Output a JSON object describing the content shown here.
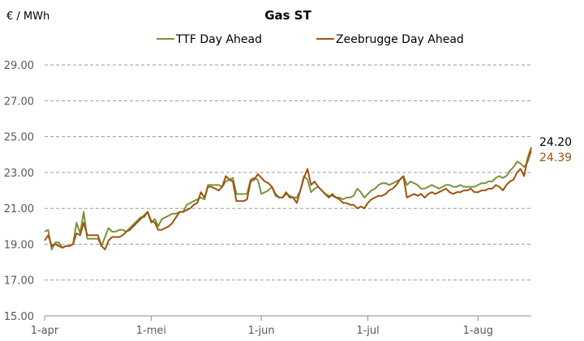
{
  "chart_data": {
    "type": "line",
    "title": "Gas ST",
    "ylabel": "€ / MWh",
    "xlabel": "",
    "ylim": [
      15,
      30
    ],
    "yticks": [
      "15.00",
      "17.00",
      "19.00",
      "21.00",
      "23.00",
      "25.00",
      "27.00",
      "29.00"
    ],
    "xticks": [
      {
        "label": "1-apr",
        "day": 0
      },
      {
        "label": "1-mei",
        "day": 30
      },
      {
        "label": "1-jun",
        "day": 61
      },
      {
        "label": "1-jul",
        "day": 91
      },
      {
        "label": "1-aug",
        "day": 122
      }
    ],
    "xlim": [
      0,
      137
    ],
    "grid": "horizontal-dashed",
    "legend": "top-center",
    "series": [
      {
        "name": "TTF Day Ahead",
        "color": "#77933c",
        "last_value_label": "24.20",
        "points": [
          [
            0,
            19.7
          ],
          [
            1,
            19.8
          ],
          [
            2,
            18.7
          ],
          [
            3,
            19.1
          ],
          [
            4,
            19.1
          ],
          [
            5,
            18.8
          ],
          [
            6,
            18.9
          ],
          [
            7,
            18.9
          ],
          [
            8,
            19.0
          ],
          [
            9,
            20.2
          ],
          [
            10,
            19.6
          ],
          [
            11,
            20.8
          ],
          [
            12,
            19.3
          ],
          [
            13,
            19.3
          ],
          [
            14,
            19.3
          ],
          [
            15,
            19.3
          ],
          [
            16,
            18.9
          ],
          [
            17,
            19.4
          ],
          [
            18,
            19.9
          ],
          [
            19,
            19.7
          ],
          [
            20,
            19.7
          ],
          [
            21,
            19.8
          ],
          [
            22,
            19.8
          ],
          [
            23,
            19.7
          ],
          [
            24,
            19.9
          ],
          [
            25,
            20.1
          ],
          [
            26,
            20.3
          ],
          [
            27,
            20.5
          ],
          [
            28,
            20.5
          ],
          [
            29,
            20.8
          ],
          [
            30,
            20.2
          ],
          [
            31,
            20.4
          ],
          [
            32,
            20.0
          ],
          [
            33,
            20.4
          ],
          [
            34,
            20.5
          ],
          [
            35,
            20.6
          ],
          [
            36,
            20.7
          ],
          [
            37,
            20.7
          ],
          [
            38,
            20.8
          ],
          [
            39,
            20.8
          ],
          [
            40,
            21.2
          ],
          [
            41,
            21.3
          ],
          [
            42,
            21.4
          ],
          [
            43,
            21.5
          ],
          [
            44,
            21.6
          ],
          [
            45,
            21.5
          ],
          [
            46,
            22.3
          ],
          [
            47,
            22.3
          ],
          [
            48,
            22.3
          ],
          [
            49,
            22.3
          ],
          [
            50,
            22.2
          ],
          [
            51,
            22.5
          ],
          [
            52,
            22.6
          ],
          [
            53,
            22.7
          ],
          [
            54,
            21.8
          ],
          [
            55,
            21.8
          ],
          [
            56,
            21.8
          ],
          [
            57,
            21.8
          ],
          [
            58,
            22.6
          ],
          [
            59,
            22.7
          ],
          [
            60,
            22.6
          ],
          [
            61,
            21.8
          ],
          [
            62,
            21.9
          ],
          [
            63,
            22.0
          ],
          [
            64,
            22.2
          ],
          [
            65,
            21.7
          ],
          [
            66,
            21.6
          ],
          [
            67,
            21.6
          ],
          [
            68,
            21.8
          ],
          [
            69,
            21.7
          ],
          [
            70,
            21.6
          ],
          [
            71,
            21.6
          ],
          [
            72,
            22.0
          ],
          [
            73,
            22.8
          ],
          [
            74,
            22.6
          ],
          [
            75,
            21.9
          ],
          [
            76,
            22.1
          ],
          [
            77,
            22.2
          ],
          [
            78,
            22.0
          ],
          [
            79,
            21.8
          ],
          [
            80,
            21.7
          ],
          [
            81,
            21.7
          ],
          [
            82,
            21.6
          ],
          [
            83,
            21.6
          ],
          [
            84,
            21.5
          ],
          [
            85,
            21.6
          ],
          [
            86,
            21.6
          ],
          [
            87,
            21.7
          ],
          [
            88,
            22.1
          ],
          [
            89,
            21.9
          ],
          [
            90,
            21.6
          ],
          [
            91,
            21.8
          ],
          [
            92,
            22.0
          ],
          [
            93,
            22.1
          ],
          [
            94,
            22.3
          ],
          [
            95,
            22.4
          ],
          [
            96,
            22.4
          ],
          [
            97,
            22.3
          ],
          [
            98,
            22.4
          ],
          [
            99,
            22.5
          ],
          [
            100,
            22.6
          ],
          [
            101,
            22.8
          ],
          [
            102,
            22.3
          ],
          [
            103,
            22.5
          ],
          [
            104,
            22.4
          ],
          [
            105,
            22.3
          ],
          [
            106,
            22.1
          ],
          [
            107,
            22.1
          ],
          [
            108,
            22.2
          ],
          [
            109,
            22.3
          ],
          [
            110,
            22.2
          ],
          [
            111,
            22.1
          ],
          [
            112,
            22.2
          ],
          [
            113,
            22.3
          ],
          [
            114,
            22.3
          ],
          [
            115,
            22.2
          ],
          [
            116,
            22.2
          ],
          [
            117,
            22.3
          ],
          [
            118,
            22.2
          ],
          [
            119,
            22.2
          ],
          [
            120,
            22.2
          ],
          [
            121,
            22.2
          ],
          [
            122,
            22.3
          ],
          [
            123,
            22.4
          ],
          [
            124,
            22.4
          ],
          [
            125,
            22.5
          ],
          [
            126,
            22.5
          ],
          [
            127,
            22.7
          ],
          [
            128,
            22.8
          ],
          [
            129,
            22.7
          ],
          [
            130,
            22.8
          ],
          [
            131,
            23.1
          ],
          [
            132,
            23.3
          ],
          [
            133,
            23.6
          ],
          [
            134,
            23.5
          ],
          [
            135,
            23.3
          ],
          [
            136,
            23.6
          ],
          [
            137,
            24.2
          ]
        ]
      },
      {
        "name": "Zeebrugge Day Ahead",
        "color": "#a0520f",
        "last_value_label": "24.39",
        "points": [
          [
            0,
            19.2
          ],
          [
            1,
            19.5
          ],
          [
            2,
            18.9
          ],
          [
            3,
            19.0
          ],
          [
            4,
            18.9
          ],
          [
            5,
            18.8
          ],
          [
            6,
            18.9
          ],
          [
            7,
            18.9
          ],
          [
            8,
            19.0
          ],
          [
            9,
            19.6
          ],
          [
            10,
            19.5
          ],
          [
            11,
            20.2
          ],
          [
            12,
            19.5
          ],
          [
            13,
            19.5
          ],
          [
            14,
            19.5
          ],
          [
            15,
            19.5
          ],
          [
            16,
            18.9
          ],
          [
            17,
            18.7
          ],
          [
            18,
            19.2
          ],
          [
            19,
            19.4
          ],
          [
            20,
            19.4
          ],
          [
            21,
            19.4
          ],
          [
            22,
            19.5
          ],
          [
            23,
            19.7
          ],
          [
            24,
            19.8
          ],
          [
            25,
            20.0
          ],
          [
            26,
            20.2
          ],
          [
            27,
            20.4
          ],
          [
            28,
            20.6
          ],
          [
            29,
            20.8
          ],
          [
            30,
            20.3
          ],
          [
            31,
            20.2
          ],
          [
            32,
            19.8
          ],
          [
            33,
            19.8
          ],
          [
            34,
            19.9
          ],
          [
            35,
            20.0
          ],
          [
            36,
            20.2
          ],
          [
            37,
            20.5
          ],
          [
            38,
            20.8
          ],
          [
            39,
            20.8
          ],
          [
            40,
            20.9
          ],
          [
            41,
            21.0
          ],
          [
            42,
            21.2
          ],
          [
            43,
            21.3
          ],
          [
            44,
            21.9
          ],
          [
            45,
            21.6
          ],
          [
            46,
            22.2
          ],
          [
            47,
            22.2
          ],
          [
            48,
            22.1
          ],
          [
            49,
            22.0
          ],
          [
            50,
            22.2
          ],
          [
            51,
            22.8
          ],
          [
            52,
            22.6
          ],
          [
            53,
            22.5
          ],
          [
            54,
            21.4
          ],
          [
            55,
            21.4
          ],
          [
            56,
            21.4
          ],
          [
            57,
            21.5
          ],
          [
            58,
            22.5
          ],
          [
            59,
            22.6
          ],
          [
            60,
            22.9
          ],
          [
            61,
            22.7
          ],
          [
            62,
            22.5
          ],
          [
            63,
            22.4
          ],
          [
            64,
            22.2
          ],
          [
            65,
            21.8
          ],
          [
            66,
            21.6
          ],
          [
            67,
            21.6
          ],
          [
            68,
            21.9
          ],
          [
            69,
            21.6
          ],
          [
            70,
            21.6
          ],
          [
            71,
            21.3
          ],
          [
            72,
            22.0
          ],
          [
            73,
            22.7
          ],
          [
            74,
            23.2
          ],
          [
            75,
            22.3
          ],
          [
            76,
            22.5
          ],
          [
            77,
            22.2
          ],
          [
            78,
            22.0
          ],
          [
            79,
            21.8
          ],
          [
            80,
            21.6
          ],
          [
            81,
            21.8
          ],
          [
            82,
            21.6
          ],
          [
            83,
            21.5
          ],
          [
            84,
            21.3
          ],
          [
            85,
            21.3
          ],
          [
            86,
            21.2
          ],
          [
            87,
            21.2
          ],
          [
            88,
            21.0
          ],
          [
            89,
            21.1
          ],
          [
            90,
            21.0
          ],
          [
            91,
            21.3
          ],
          [
            92,
            21.5
          ],
          [
            93,
            21.6
          ],
          [
            94,
            21.7
          ],
          [
            95,
            21.7
          ],
          [
            96,
            21.8
          ],
          [
            97,
            22.0
          ],
          [
            98,
            22.1
          ],
          [
            99,
            22.3
          ],
          [
            100,
            22.6
          ],
          [
            101,
            22.8
          ],
          [
            102,
            21.6
          ],
          [
            103,
            21.7
          ],
          [
            104,
            21.8
          ],
          [
            105,
            21.7
          ],
          [
            106,
            21.8
          ],
          [
            107,
            21.6
          ],
          [
            108,
            21.8
          ],
          [
            109,
            21.9
          ],
          [
            110,
            21.8
          ],
          [
            111,
            21.9
          ],
          [
            112,
            22.0
          ],
          [
            113,
            22.1
          ],
          [
            114,
            21.9
          ],
          [
            115,
            21.8
          ],
          [
            116,
            21.9
          ],
          [
            117,
            21.9
          ],
          [
            118,
            22.0
          ],
          [
            119,
            22.0
          ],
          [
            120,
            22.1
          ],
          [
            121,
            21.9
          ],
          [
            122,
            21.9
          ],
          [
            123,
            22.0
          ],
          [
            124,
            22.0
          ],
          [
            125,
            22.1
          ],
          [
            126,
            22.1
          ],
          [
            127,
            22.3
          ],
          [
            128,
            22.2
          ],
          [
            129,
            22.0
          ],
          [
            130,
            22.3
          ],
          [
            131,
            22.5
          ],
          [
            132,
            22.6
          ],
          [
            133,
            23.0
          ],
          [
            134,
            23.2
          ],
          [
            135,
            22.8
          ],
          [
            136,
            23.8
          ],
          [
            137,
            24.39
          ]
        ]
      }
    ]
  }
}
